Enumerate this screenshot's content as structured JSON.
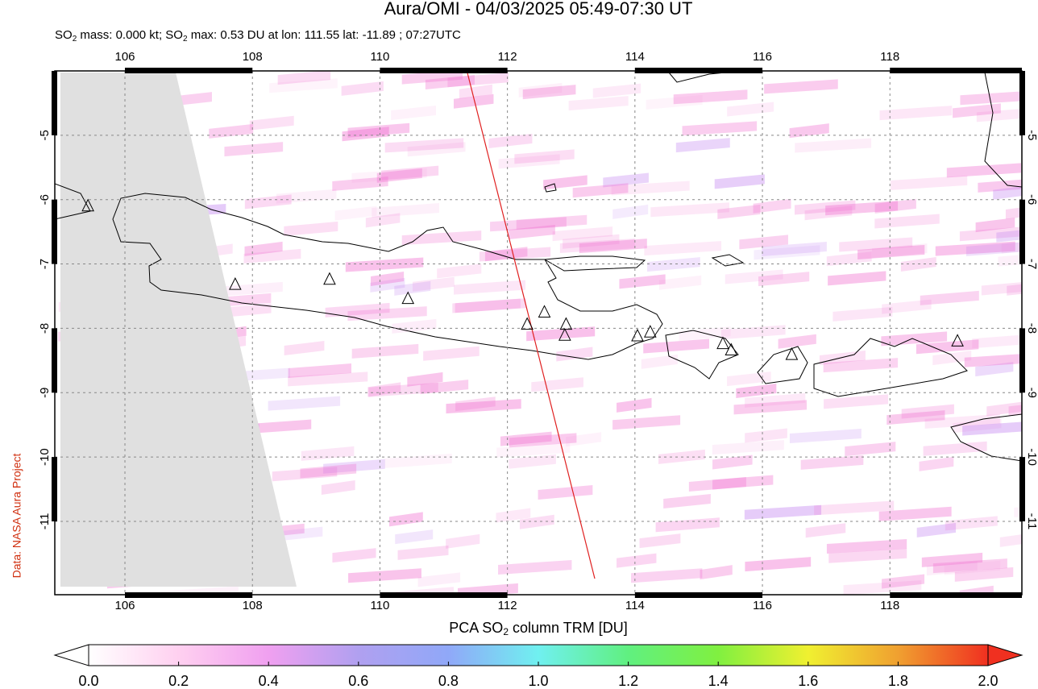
{
  "title": "Aura/OMI - 04/03/2025 05:49-07:30 UT",
  "subtitle_parts": [
    "SO",
    "2",
    " mass: 0.000 kt; SO",
    "2",
    " max: 0.53 DU at lon: 111.55 lat: -11.89 ; 07:27UTC"
  ],
  "credit": "Data: NASA Aura Project",
  "map": {
    "type": "map",
    "xlim": [
      104.9,
      120.07
    ],
    "ylim": [
      -12.14,
      -4.0
    ],
    "xticks": [
      106,
      108,
      110,
      112,
      114,
      116,
      118
    ],
    "yticks": [
      -5,
      -6,
      -7,
      -8,
      -9,
      -10,
      -11
    ],
    "grid": true,
    "volcanoes": {
      "lon": [
        105.42,
        107.73,
        109.21,
        110.44,
        112.31,
        112.58,
        112.92,
        112.9,
        114.04,
        114.24,
        115.38,
        115.51,
        116.46,
        119.06
      ],
      "lat": [
        -6.1,
        -7.32,
        -7.24,
        -7.54,
        -7.94,
        -7.75,
        -7.94,
        -8.11,
        -8.12,
        -8.06,
        -8.24,
        -8.34,
        -8.41,
        -8.2
      ]
    },
    "orbit": {
      "lon": [
        111.37,
        113.37
      ],
      "lat": [
        -4.02,
        -11.89
      ],
      "color": "#e02020"
    }
  },
  "colorbar": {
    "label_parts": [
      "PCA SO",
      "2",
      " column TRM [DU]"
    ],
    "lim": [
      0,
      2
    ],
    "ticks": [
      {
        "value": 0,
        "label": "0.0"
      },
      0.2,
      0.4,
      0.6,
      0.8,
      {
        "value": 1,
        "label": "1.0"
      },
      1.2,
      1.4,
      1.6,
      1.8,
      {
        "value": 2,
        "label": "2.0"
      }
    ],
    "colors": [
      "#ffffff",
      "#ffd0f0",
      "#f0a0f0",
      "#b0a0f0",
      "#90a8f8",
      "#70f0f0",
      "#60f080",
      "#80f040",
      "#f0f030",
      "#f0a030",
      "#f03020"
    ]
  }
}
